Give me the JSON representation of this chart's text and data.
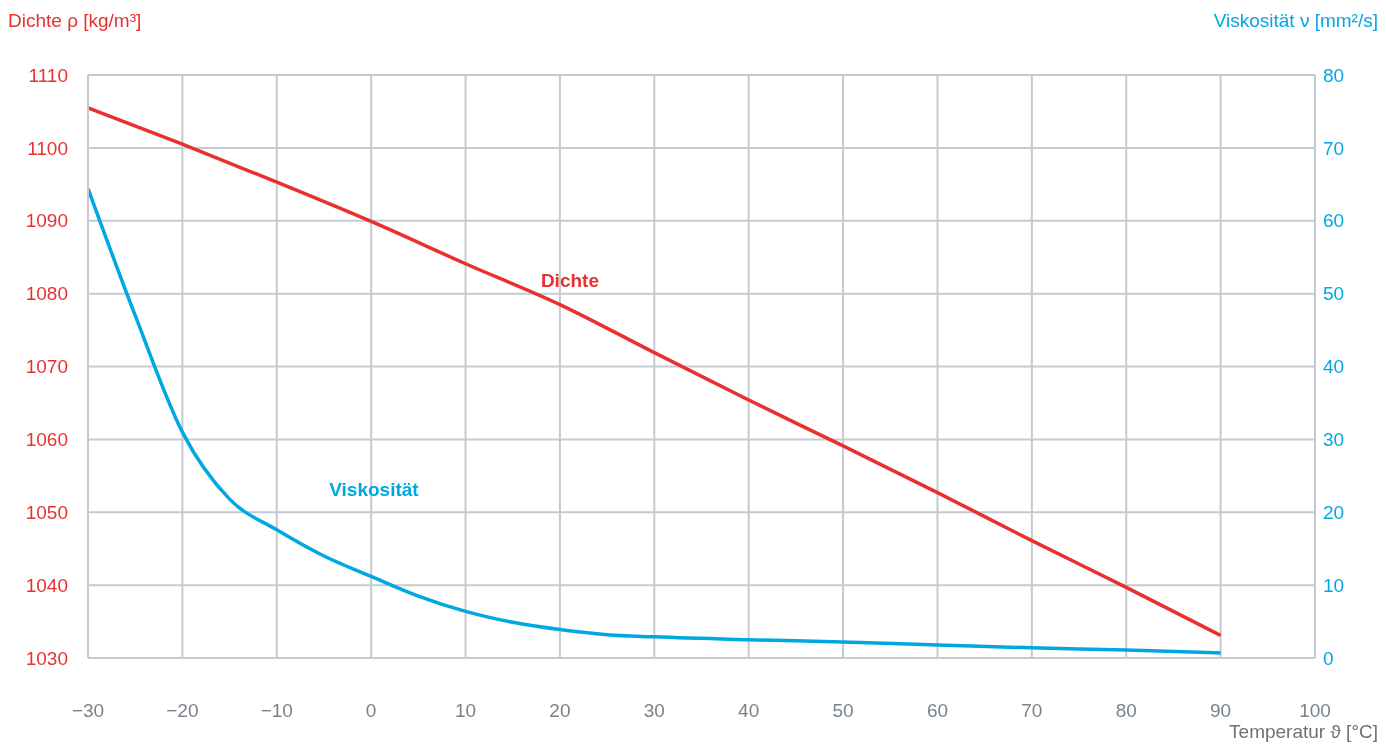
{
  "chart_data": {
    "type": "line",
    "xlabel": "Temperatur ϑ [°C]",
    "ylabel": "Dichte ρ [kg/m³]",
    "y2label": "Viskosität ν [mm²/s]",
    "xlim": [
      -30,
      100
    ],
    "xticks": [
      -30,
      -20,
      -10,
      0,
      10,
      20,
      30,
      40,
      50,
      60,
      70,
      80,
      90,
      100
    ],
    "ylim": [
      1030,
      1110
    ],
    "yticks": [
      1030,
      1040,
      1050,
      1060,
      1070,
      1080,
      1090,
      1100,
      1110
    ],
    "y2lim": [
      0,
      80
    ],
    "y2ticks": [
      0,
      10,
      20,
      30,
      40,
      50,
      60,
      70,
      80
    ],
    "grid": true,
    "marker": "none",
    "line_style": "solid",
    "series": [
      {
        "name": "Dichte",
        "color": "#e8312f",
        "x": [
          -30,
          -20,
          -10,
          0,
          10,
          20,
          30,
          40,
          50,
          60,
          70,
          80,
          90
        ],
        "values": [
          1105.5,
          1100.5,
          1095.3,
          1089.9,
          1084.1,
          1078.5,
          1071.9,
          1065.4,
          1059.1,
          1052.7,
          1046.1,
          1039.7,
          1033.1
        ]
      },
      {
        "name": "Viskosität",
        "color": "#00a8e1",
        "axis": "y2",
        "x": [
          -30,
          -25,
          -20,
          -15,
          -10,
          -5,
          0,
          5,
          10,
          15,
          20,
          25,
          30,
          40,
          50,
          60,
          70,
          80,
          90
        ],
        "values": [
          64.4,
          47,
          31,
          21.8,
          17.6,
          14,
          11.2,
          8.5,
          6.4,
          4.9,
          3.9,
          3.2,
          2.9,
          2.5,
          2.2,
          1.8,
          1.4,
          1.1,
          0.7
        ]
      }
    ]
  }
}
